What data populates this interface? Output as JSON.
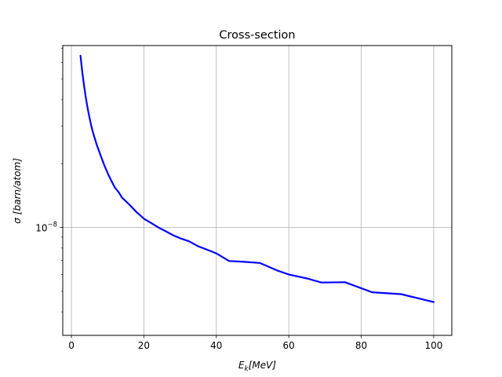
{
  "chart_data": {
    "type": "line",
    "title": "Cross-section",
    "xlabel_main": "E",
    "xlabel_sub": "k",
    "xlabel_unit": "[MeV]",
    "ylabel_sym": "σ",
    "ylabel_unit": "[barn/atom]",
    "y_scale": "log",
    "grid": true,
    "xlim": [
      -2.4,
      105
    ],
    "ylim": [
      3.1e-09,
      7.2e-08
    ],
    "x_ticks": [
      0,
      20,
      40,
      60,
      80,
      100
    ],
    "x_tick_labels": [
      "0",
      "20",
      "40",
      "60",
      "80",
      "100"
    ],
    "y_ticks": [
      1e-08
    ],
    "y_tick_labels": [
      {
        "base": "10",
        "exp": "−8"
      }
    ],
    "series": [
      {
        "color": "#0000ff",
        "x": [
          2.5,
          3,
          3.5,
          4,
          4.5,
          5,
          5.5,
          6,
          7,
          8,
          9,
          10,
          11,
          12,
          13,
          14,
          15,
          16,
          17,
          18,
          19,
          20,
          22,
          24,
          26,
          28,
          30,
          32.5,
          35,
          37.5,
          40,
          43.5,
          47,
          52,
          57,
          60,
          65,
          69,
          75.5,
          83,
          91,
          100
        ],
        "y": [
          6.45e-08,
          5.4e-08,
          4.65e-08,
          4.05e-08,
          3.62e-08,
          3.28e-08,
          3e-08,
          2.78e-08,
          2.45e-08,
          2.2e-08,
          1.98e-08,
          1.8e-08,
          1.66e-08,
          1.54e-08,
          1.47e-08,
          1.38e-08,
          1.33e-08,
          1.28e-08,
          1.23e-08,
          1.18e-08,
          1.14e-08,
          1.1e-08,
          1.05e-08,
          1e-08,
          9.6e-09,
          9.2e-09,
          8.9e-09,
          8.6e-09,
          8.15e-09,
          7.85e-09,
          7.55e-09,
          6.95e-09,
          6.9e-09,
          6.8e-09,
          6.25e-09,
          6e-09,
          5.75e-09,
          5.5e-09,
          5.52e-09,
          4.95e-09,
          4.85e-09,
          4.45e-09
        ]
      }
    ]
  }
}
